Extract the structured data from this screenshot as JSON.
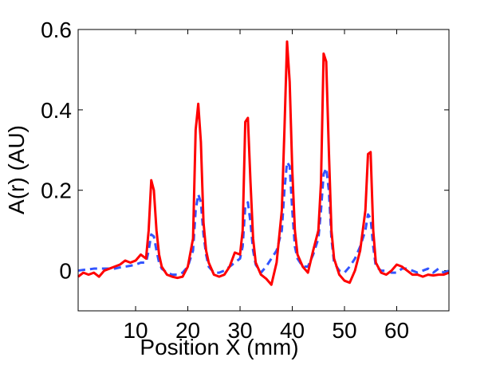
{
  "chart_data": {
    "type": "line",
    "xlabel": "Position X (mm)",
    "ylabel": "A(r) (AU)",
    "x": [
      -1,
      0,
      1,
      2,
      3,
      4,
      5,
      6,
      7,
      8,
      9,
      10,
      11,
      12,
      12.5,
      13,
      13.5,
      14,
      14.5,
      15,
      16,
      17,
      18,
      19,
      20,
      21,
      21.5,
      22,
      22.5,
      23,
      23.5,
      24,
      25,
      26,
      27,
      28,
      29,
      30,
      30.5,
      31,
      31.5,
      32,
      32.5,
      33,
      34,
      35,
      36,
      37,
      38,
      38.5,
      39,
      39.5,
      40,
      40.5,
      41,
      42,
      43,
      44,
      45,
      45.5,
      46,
      46.5,
      47,
      47.5,
      48,
      49,
      50,
      51,
      52,
      53,
      54,
      54.5,
      55,
      55.5,
      56,
      57,
      58,
      59,
      60,
      61,
      62,
      63,
      64,
      65,
      66,
      67,
      68,
      69,
      70
    ],
    "series": [
      {
        "color": "#ff0000",
        "dash": "solid",
        "values": [
          -0.015,
          -0.005,
          -0.01,
          -0.005,
          -0.015,
          0,
          0.005,
          0.01,
          0.015,
          0.025,
          0.02,
          0.025,
          0.04,
          0.03,
          0.1,
          0.225,
          0.2,
          0.1,
          0.04,
          0.01,
          -0.01,
          -0.015,
          -0.018,
          -0.015,
          0.01,
          0.08,
          0.35,
          0.415,
          0.32,
          0.12,
          0.05,
          0.02,
          -0.01,
          -0.015,
          -0.01,
          0.01,
          0.045,
          0.04,
          0.1,
          0.37,
          0.38,
          0.22,
          0.08,
          0.02,
          -0.01,
          -0.02,
          -0.035,
          0.02,
          0.15,
          0.35,
          0.57,
          0.47,
          0.25,
          0.1,
          0.04,
          0.01,
          -0.005,
          0.05,
          0.1,
          0.22,
          0.54,
          0.52,
          0.3,
          0.1,
          0.03,
          -0.01,
          -0.025,
          -0.03,
          0,
          0.05,
          0.15,
          0.29,
          0.295,
          0.1,
          0.02,
          -0.005,
          -0.01,
          0,
          0.015,
          0.01,
          0,
          -0.01,
          -0.01,
          -0.015,
          -0.01,
          -0.012,
          -0.01,
          -0.01,
          -0.005
        ]
      },
      {
        "color": "#3355ff",
        "dash": "dashed",
        "values": [
          0,
          0.002,
          0.003,
          0.005,
          0.005,
          0.005,
          0.005,
          0.005,
          0.008,
          0.01,
          0.012,
          0.015,
          0.02,
          0.02,
          0.05,
          0.09,
          0.085,
          0.05,
          0.02,
          0.005,
          -0.005,
          -0.01,
          -0.01,
          -0.005,
          0.01,
          0.05,
          0.15,
          0.19,
          0.17,
          0.09,
          0.04,
          0.01,
          -0.005,
          -0.005,
          0,
          0.01,
          0.02,
          0.03,
          0.06,
          0.16,
          0.17,
          0.12,
          0.05,
          0.015,
          -0.005,
          0.01,
          0.03,
          0.05,
          0.1,
          0.2,
          0.27,
          0.26,
          0.15,
          0.06,
          0.03,
          0.01,
          0.01,
          0.04,
          0.08,
          0.15,
          0.24,
          0.255,
          0.2,
          0.08,
          0.02,
          0,
          -0.005,
          0.01,
          0.03,
          0.06,
          0.1,
          0.14,
          0.13,
          0.06,
          0.01,
          0,
          0,
          -0.005,
          -0.005,
          0.005,
          0.005,
          0,
          -0.005,
          0,
          0.005,
          -0.005,
          0.005,
          -0.005,
          0
        ]
      }
    ],
    "xlim": [
      -1,
      70
    ],
    "xticks": [
      10,
      20,
      30,
      40,
      50,
      60
    ],
    "ylim": [
      -0.1,
      0.6
    ],
    "yticks": [
      0,
      0.2,
      0.4,
      0.6
    ],
    "grid": false
  }
}
